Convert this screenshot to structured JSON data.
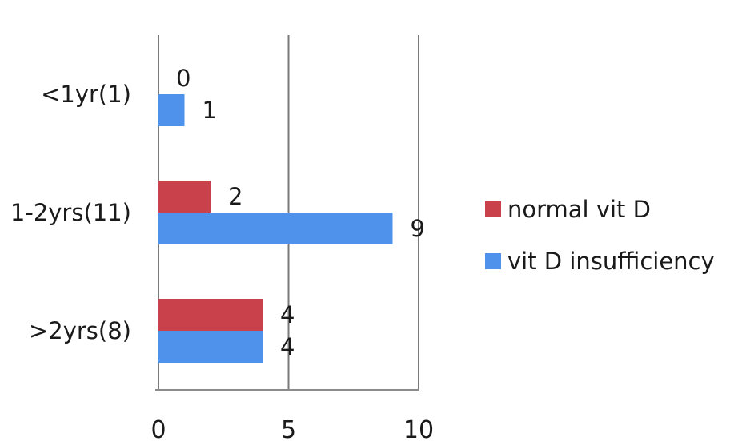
{
  "chart_data": {
    "type": "bar",
    "orientation": "horizontal",
    "categories": [
      "<1yr(1)",
      "1-2yrs(11)",
      ">2yrs(8)"
    ],
    "series": [
      {
        "name": "normal vit D",
        "values": [
          0,
          2,
          4
        ],
        "color": "#c8414b"
      },
      {
        "name": "vit D insufficiency",
        "values": [
          1,
          9,
          4
        ],
        "color": "#4f92ec"
      }
    ],
    "xlim": [
      0,
      10
    ],
    "xticks": [
      0,
      5,
      10
    ],
    "title": "",
    "xlabel": "",
    "ylabel": "",
    "grid": "vertical",
    "legend_position": "right"
  }
}
